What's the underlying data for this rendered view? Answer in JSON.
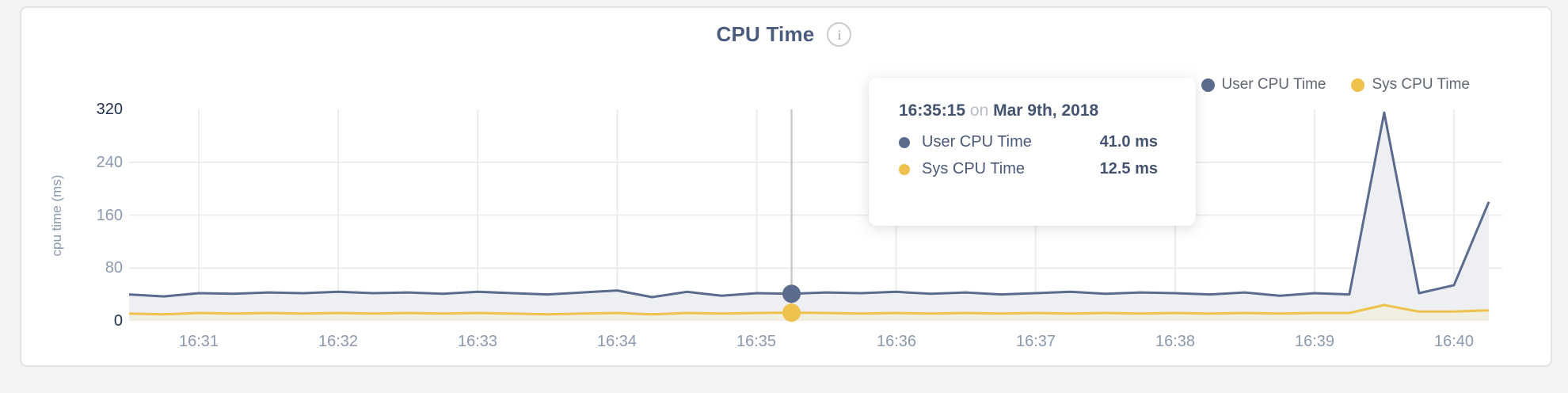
{
  "header": {
    "title": "CPU Time",
    "info_icon": "i"
  },
  "legend": {
    "items": [
      {
        "label": "User CPU Time",
        "color": "#5b6b8d"
      },
      {
        "label": "Sys CPU Time",
        "color": "#efc14d"
      }
    ]
  },
  "tooltip": {
    "time": "16:35:15",
    "connector": "on",
    "date": "Mar 9th, 2018",
    "rows": [
      {
        "label": "User CPU Time",
        "value": "41.0 ms",
        "color": "#5b6b8d"
      },
      {
        "label": "Sys CPU Time",
        "value": "12.5 ms",
        "color": "#efc14d"
      }
    ]
  },
  "chart_data": {
    "type": "area",
    "title": "CPU Time",
    "xlabel": "",
    "ylabel": "cpu time (ms)",
    "ylim": [
      0,
      320
    ],
    "grid": true,
    "legend_position": "top-right",
    "grid_color": "#e9e9e9",
    "crosshair_color": "#c9c9c9",
    "x": [
      "16:30:30",
      "16:30:45",
      "16:31:00",
      "16:31:15",
      "16:31:30",
      "16:31:45",
      "16:32:00",
      "16:32:15",
      "16:32:30",
      "16:32:45",
      "16:33:00",
      "16:33:15",
      "16:33:30",
      "16:33:45",
      "16:34:00",
      "16:34:15",
      "16:34:30",
      "16:34:45",
      "16:35:00",
      "16:35:15",
      "16:35:30",
      "16:35:45",
      "16:36:00",
      "16:36:15",
      "16:36:30",
      "16:36:45",
      "16:37:00",
      "16:37:15",
      "16:37:30",
      "16:37:45",
      "16:38:00",
      "16:38:15",
      "16:38:30",
      "16:38:45",
      "16:39:00",
      "16:39:15",
      "16:39:30",
      "16:39:45",
      "16:40:00",
      "16:40:15"
    ],
    "series": [
      {
        "name": "User CPU Time",
        "color": "#5b6b8d",
        "fill": "#edeff3",
        "values": [
          40,
          37,
          42,
          41,
          43,
          42,
          44,
          42,
          43,
          41,
          44,
          42,
          40,
          43,
          46,
          36,
          44,
          38,
          42,
          41,
          43,
          42,
          44,
          41,
          43,
          40,
          42,
          44,
          41,
          43,
          42,
          40,
          43,
          38,
          42,
          40,
          315,
          42,
          54,
          180
        ]
      },
      {
        "name": "Sys CPU Time",
        "color": "#efc14d",
        "fill": "#f1eee2",
        "values": [
          11,
          10,
          12,
          11,
          12,
          11,
          12,
          11,
          12,
          11,
          12,
          11,
          10,
          11,
          12,
          10,
          12,
          11,
          12,
          12.5,
          12,
          11,
          12,
          11,
          12,
          11,
          12,
          11,
          12,
          11,
          12,
          11,
          12,
          11,
          12,
          12,
          24,
          14,
          14,
          16
        ]
      }
    ],
    "x_ticks": [
      {
        "label": "16:31",
        "index": 2
      },
      {
        "label": "16:32",
        "index": 6
      },
      {
        "label": "16:33",
        "index": 10
      },
      {
        "label": "16:34",
        "index": 14
      },
      {
        "label": "16:35",
        "index": 18
      },
      {
        "label": "16:36",
        "index": 22
      },
      {
        "label": "16:37",
        "index": 26
      },
      {
        "label": "16:38",
        "index": 30
      },
      {
        "label": "16:39",
        "index": 34
      },
      {
        "label": "16:40",
        "index": 38
      }
    ],
    "y_ticks": [
      {
        "value": 0,
        "line": false,
        "emphasis": true
      },
      {
        "value": 80,
        "line": true,
        "emphasis": false
      },
      {
        "value": 160,
        "line": true,
        "emphasis": false
      },
      {
        "value": 240,
        "line": true,
        "emphasis": false
      },
      {
        "value": 320,
        "line": false,
        "emphasis": true
      }
    ],
    "selected_index": 19,
    "selected_values": {
      "User CPU Time": 41.0,
      "Sys CPU Time": 12.5,
      "unit": "ms"
    }
  }
}
